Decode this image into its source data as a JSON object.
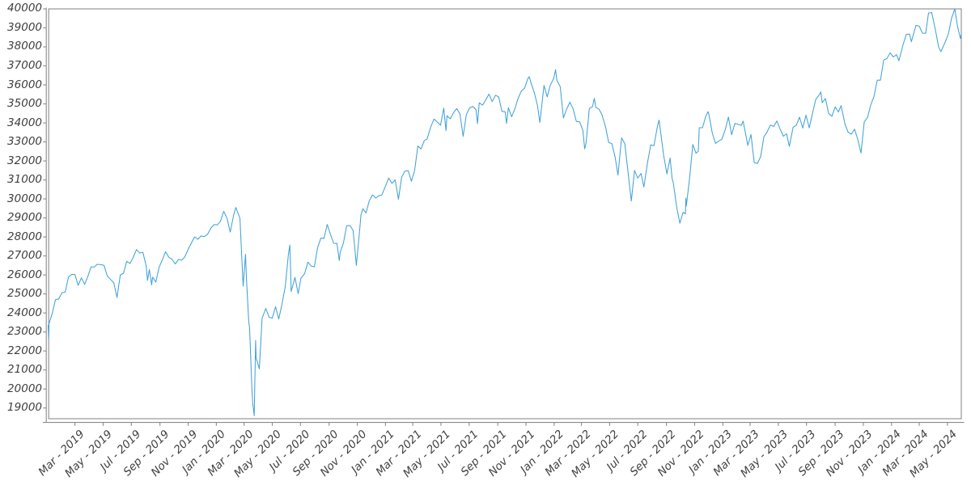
{
  "figure": {
    "background": "#ffffff"
  },
  "chart_data": {
    "type": "line",
    "title": "",
    "xlabel": "",
    "ylabel": "",
    "grid": false,
    "legend": false,
    "line_color": "#41a2d9",
    "axis_color": "#8b8b8b",
    "tick_label_color": "#3f3f3f",
    "x_range": [
      "2019-01-02",
      "2024-05-31"
    ],
    "ylim": [
      18435,
      40020
    ],
    "y_ticks": [
      40000,
      39000,
      38000,
      37000,
      36000,
      35000,
      34000,
      33000,
      32000,
      31000,
      30000,
      29000,
      28000,
      27000,
      26000,
      25000,
      24000,
      23000,
      22000,
      21000,
      20000,
      19000
    ],
    "x_ticks": [
      {
        "label": "Mar - 2019",
        "date": "2019-03-01"
      },
      {
        "label": "May - 2019",
        "date": "2019-05-01"
      },
      {
        "label": "Jul - 2019",
        "date": "2019-07-01"
      },
      {
        "label": "Sep - 2019",
        "date": "2019-09-01"
      },
      {
        "label": "Nov - 2019",
        "date": "2019-11-01"
      },
      {
        "label": "Jan - 2020",
        "date": "2020-01-01"
      },
      {
        "label": "Mar - 2020",
        "date": "2020-03-01"
      },
      {
        "label": "May - 2020",
        "date": "2020-05-01"
      },
      {
        "label": "Jul - 2020",
        "date": "2020-07-01"
      },
      {
        "label": "Sep - 2020",
        "date": "2020-09-01"
      },
      {
        "label": "Nov - 2020",
        "date": "2020-11-01"
      },
      {
        "label": "Jan - 2021",
        "date": "2021-01-01"
      },
      {
        "label": "Mar - 2021",
        "date": "2021-03-01"
      },
      {
        "label": "May - 2021",
        "date": "2021-05-01"
      },
      {
        "label": "Jul - 2021",
        "date": "2021-07-01"
      },
      {
        "label": "Sep - 2021",
        "date": "2021-09-01"
      },
      {
        "label": "Nov - 2021",
        "date": "2021-11-01"
      },
      {
        "label": "Jan - 2022",
        "date": "2022-01-01"
      },
      {
        "label": "Mar - 2022",
        "date": "2022-03-01"
      },
      {
        "label": "May - 2022",
        "date": "2022-05-01"
      },
      {
        "label": "Jul - 2022",
        "date": "2022-07-01"
      },
      {
        "label": "Sep - 2022",
        "date": "2022-09-01"
      },
      {
        "label": "Nov - 2022",
        "date": "2022-11-01"
      },
      {
        "label": "Jan - 2023",
        "date": "2023-01-01"
      },
      {
        "label": "Mar - 2023",
        "date": "2023-03-01"
      },
      {
        "label": "May - 2023",
        "date": "2023-05-01"
      },
      {
        "label": "Jul - 2023",
        "date": "2023-07-01"
      },
      {
        "label": "Sep - 2023",
        "date": "2023-09-01"
      },
      {
        "label": "Nov - 2023",
        "date": "2023-11-01"
      },
      {
        "label": "Jan - 2024",
        "date": "2024-01-01"
      },
      {
        "label": "Mar - 2024",
        "date": "2024-03-01"
      },
      {
        "label": "May - 2024",
        "date": "2024-05-01"
      }
    ],
    "points": [
      [
        "2019-01-02",
        23346
      ],
      [
        "2019-01-03",
        22686
      ],
      [
        "2019-01-04",
        23433
      ],
      [
        "2019-01-11",
        23996
      ],
      [
        "2019-01-18",
        24706
      ],
      [
        "2019-01-25",
        24737
      ],
      [
        "2019-02-01",
        25064
      ],
      [
        "2019-02-08",
        25106
      ],
      [
        "2019-02-15",
        25883
      ],
      [
        "2019-02-22",
        26032
      ],
      [
        "2019-03-01",
        26026
      ],
      [
        "2019-03-08",
        25450
      ],
      [
        "2019-03-15",
        25849
      ],
      [
        "2019-03-22",
        25502
      ],
      [
        "2019-03-29",
        25929
      ],
      [
        "2019-04-05",
        26425
      ],
      [
        "2019-04-12",
        26412
      ],
      [
        "2019-04-18",
        26560
      ],
      [
        "2019-04-26",
        26543
      ],
      [
        "2019-05-03",
        26505
      ],
      [
        "2019-05-10",
        25942
      ],
      [
        "2019-05-17",
        25764
      ],
      [
        "2019-05-24",
        25586
      ],
      [
        "2019-05-31",
        24815
      ],
      [
        "2019-06-07",
        25984
      ],
      [
        "2019-06-14",
        26090
      ],
      [
        "2019-06-21",
        26719
      ],
      [
        "2019-06-28",
        26600
      ],
      [
        "2019-07-05",
        26922
      ],
      [
        "2019-07-12",
        27332
      ],
      [
        "2019-07-19",
        27154
      ],
      [
        "2019-07-26",
        27192
      ],
      [
        "2019-08-02",
        26485
      ],
      [
        "2019-08-05",
        25718
      ],
      [
        "2019-08-09",
        26287
      ],
      [
        "2019-08-14",
        25479
      ],
      [
        "2019-08-16",
        25886
      ],
      [
        "2019-08-23",
        25629
      ],
      [
        "2019-08-30",
        26403
      ],
      [
        "2019-09-06",
        26797
      ],
      [
        "2019-09-13",
        27220
      ],
      [
        "2019-09-20",
        26935
      ],
      [
        "2019-09-27",
        26820
      ],
      [
        "2019-10-04",
        26574
      ],
      [
        "2019-10-11",
        26817
      ],
      [
        "2019-10-18",
        26770
      ],
      [
        "2019-10-25",
        26958
      ],
      [
        "2019-11-01",
        27347
      ],
      [
        "2019-11-08",
        27681
      ],
      [
        "2019-11-15",
        28005
      ],
      [
        "2019-11-22",
        27876
      ],
      [
        "2019-11-29",
        28051
      ],
      [
        "2019-12-06",
        28015
      ],
      [
        "2019-12-13",
        28135
      ],
      [
        "2019-12-20",
        28455
      ],
      [
        "2019-12-27",
        28645
      ],
      [
        "2020-01-03",
        28635
      ],
      [
        "2020-01-10",
        28824
      ],
      [
        "2020-01-17",
        29348
      ],
      [
        "2020-01-24",
        28990
      ],
      [
        "2020-01-31",
        28256
      ],
      [
        "2020-02-07",
        29103
      ],
      [
        "2020-02-12",
        29551
      ],
      [
        "2020-02-21",
        28992
      ],
      [
        "2020-02-28",
        25409
      ],
      [
        "2020-03-04",
        27091
      ],
      [
        "2020-03-06",
        25865
      ],
      [
        "2020-03-11",
        23553
      ],
      [
        "2020-03-13",
        23186
      ],
      [
        "2020-03-18",
        19899
      ],
      [
        "2020-03-20",
        19174
      ],
      [
        "2020-03-23",
        18592
      ],
      [
        "2020-03-26",
        22552
      ],
      [
        "2020-03-27",
        21637
      ],
      [
        "2020-04-03",
        21053
      ],
      [
        "2020-04-09",
        23719
      ],
      [
        "2020-04-17",
        24242
      ],
      [
        "2020-04-24",
        23775
      ],
      [
        "2020-05-01",
        23724
      ],
      [
        "2020-05-08",
        24331
      ],
      [
        "2020-05-15",
        23685
      ],
      [
        "2020-05-22",
        24465
      ],
      [
        "2020-05-29",
        25383
      ],
      [
        "2020-06-05",
        27111
      ],
      [
        "2020-06-08",
        27572
      ],
      [
        "2020-06-11",
        25128
      ],
      [
        "2020-06-19",
        25871
      ],
      [
        "2020-06-26",
        25016
      ],
      [
        "2020-07-02",
        25827
      ],
      [
        "2020-07-10",
        26075
      ],
      [
        "2020-07-17",
        26672
      ],
      [
        "2020-07-24",
        26470
      ],
      [
        "2020-07-31",
        26428
      ],
      [
        "2020-08-07",
        27433
      ],
      [
        "2020-08-14",
        27931
      ],
      [
        "2020-08-21",
        27930
      ],
      [
        "2020-08-28",
        28654
      ],
      [
        "2020-09-04",
        28133
      ],
      [
        "2020-09-11",
        27666
      ],
      [
        "2020-09-18",
        27657
      ],
      [
        "2020-09-23",
        26763
      ],
      [
        "2020-09-25",
        27174
      ],
      [
        "2020-10-02",
        27683
      ],
      [
        "2020-10-09",
        28587
      ],
      [
        "2020-10-16",
        28606
      ],
      [
        "2020-10-23",
        28336
      ],
      [
        "2020-10-30",
        26502
      ],
      [
        "2020-11-06",
        28323
      ],
      [
        "2020-11-09",
        29158
      ],
      [
        "2020-11-13",
        29480
      ],
      [
        "2020-11-20",
        29263
      ],
      [
        "2020-11-27",
        29910
      ],
      [
        "2020-12-04",
        30218
      ],
      [
        "2020-12-11",
        30046
      ],
      [
        "2020-12-18",
        30179
      ],
      [
        "2020-12-24",
        30200
      ],
      [
        "2020-12-31",
        30606
      ],
      [
        "2021-01-08",
        31098
      ],
      [
        "2021-01-15",
        30814
      ],
      [
        "2021-01-22",
        30997
      ],
      [
        "2021-01-29",
        29983
      ],
      [
        "2021-02-05",
        31148
      ],
      [
        "2021-02-12",
        31458
      ],
      [
        "2021-02-19",
        31494
      ],
      [
        "2021-02-26",
        30932
      ],
      [
        "2021-03-05",
        31496
      ],
      [
        "2021-03-12",
        32779
      ],
      [
        "2021-03-19",
        32628
      ],
      [
        "2021-03-26",
        33073
      ],
      [
        "2021-04-01",
        33153
      ],
      [
        "2021-04-09",
        33801
      ],
      [
        "2021-04-16",
        34201
      ],
      [
        "2021-04-23",
        34043
      ],
      [
        "2021-04-30",
        33875
      ],
      [
        "2021-05-07",
        34778
      ],
      [
        "2021-05-12",
        33588
      ],
      [
        "2021-05-14",
        34382
      ],
      [
        "2021-05-21",
        34208
      ],
      [
        "2021-05-28",
        34529
      ],
      [
        "2021-06-04",
        34756
      ],
      [
        "2021-06-11",
        34480
      ],
      [
        "2021-06-18",
        33290
      ],
      [
        "2021-06-25",
        34434
      ],
      [
        "2021-07-02",
        34786
      ],
      [
        "2021-07-09",
        34870
      ],
      [
        "2021-07-16",
        34688
      ],
      [
        "2021-07-19",
        33962
      ],
      [
        "2021-07-23",
        35062
      ],
      [
        "2021-07-30",
        34935
      ],
      [
        "2021-08-06",
        35209
      ],
      [
        "2021-08-13",
        35515
      ],
      [
        "2021-08-20",
        35120
      ],
      [
        "2021-08-27",
        35456
      ],
      [
        "2021-09-03",
        35369
      ],
      [
        "2021-09-10",
        34608
      ],
      [
        "2021-09-17",
        34585
      ],
      [
        "2021-09-20",
        33970
      ],
      [
        "2021-09-24",
        34798
      ],
      [
        "2021-10-01",
        34326
      ],
      [
        "2021-10-08",
        34746
      ],
      [
        "2021-10-15",
        35295
      ],
      [
        "2021-10-22",
        35677
      ],
      [
        "2021-10-29",
        35820
      ],
      [
        "2021-11-05",
        36328
      ],
      [
        "2021-11-08",
        36432
      ],
      [
        "2021-11-12",
        36100
      ],
      [
        "2021-11-19",
        35602
      ],
      [
        "2021-11-26",
        34899
      ],
      [
        "2021-12-01",
        34022
      ],
      [
        "2021-12-10",
        35971
      ],
      [
        "2021-12-17",
        35365
      ],
      [
        "2021-12-23",
        35950
      ],
      [
        "2021-12-31",
        36338
      ],
      [
        "2022-01-04",
        36800
      ],
      [
        "2022-01-07",
        36232
      ],
      [
        "2022-01-14",
        35912
      ],
      [
        "2022-01-21",
        34265
      ],
      [
        "2022-01-28",
        34725
      ],
      [
        "2022-02-04",
        35090
      ],
      [
        "2022-02-11",
        34738
      ],
      [
        "2022-02-18",
        34079
      ],
      [
        "2022-02-25",
        34059
      ],
      [
        "2022-03-04",
        33615
      ],
      [
        "2022-03-08",
        32632
      ],
      [
        "2022-03-11",
        32944
      ],
      [
        "2022-03-18",
        34755
      ],
      [
        "2022-03-25",
        34861
      ],
      [
        "2022-03-29",
        35294
      ],
      [
        "2022-04-01",
        34818
      ],
      [
        "2022-04-08",
        34721
      ],
      [
        "2022-04-14",
        34451
      ],
      [
        "2022-04-22",
        33811
      ],
      [
        "2022-04-29",
        32977
      ],
      [
        "2022-05-06",
        32899
      ],
      [
        "2022-05-13",
        32197
      ],
      [
        "2022-05-19",
        31253
      ],
      [
        "2022-05-27",
        33213
      ],
      [
        "2022-06-03",
        32900
      ],
      [
        "2022-06-10",
        31393
      ],
      [
        "2022-06-17",
        29889
      ],
      [
        "2022-06-24",
        31500
      ],
      [
        "2022-07-01",
        31097
      ],
      [
        "2022-07-08",
        31338
      ],
      [
        "2022-07-14",
        30630
      ],
      [
        "2022-07-22",
        31899
      ],
      [
        "2022-07-29",
        32845
      ],
      [
        "2022-08-05",
        32803
      ],
      [
        "2022-08-12",
        33761
      ],
      [
        "2022-08-16",
        34152
      ],
      [
        "2022-08-26",
        32283
      ],
      [
        "2022-09-02",
        31318
      ],
      [
        "2022-09-09",
        32152
      ],
      [
        "2022-09-13",
        31105
      ],
      [
        "2022-09-16",
        30822
      ],
      [
        "2022-09-23",
        29590
      ],
      [
        "2022-09-30",
        28725
      ],
      [
        "2022-10-07",
        29297
      ],
      [
        "2022-10-12",
        29211
      ],
      [
        "2022-10-13",
        30039
      ],
      [
        "2022-10-14",
        29635
      ],
      [
        "2022-10-21",
        31083
      ],
      [
        "2022-10-28",
        32862
      ],
      [
        "2022-11-04",
        32403
      ],
      [
        "2022-11-09",
        32514
      ],
      [
        "2022-11-11",
        33748
      ],
      [
        "2022-11-18",
        33746
      ],
      [
        "2022-11-25",
        34347
      ],
      [
        "2022-11-30",
        34590
      ],
      [
        "2022-12-02",
        34430
      ],
      [
        "2022-12-09",
        33476
      ],
      [
        "2022-12-16",
        32920
      ],
      [
        "2022-12-22",
        33027
      ],
      [
        "2022-12-30",
        33147
      ],
      [
        "2023-01-06",
        33631
      ],
      [
        "2023-01-13",
        34303
      ],
      [
        "2023-01-20",
        33375
      ],
      [
        "2023-01-27",
        33978
      ],
      [
        "2023-02-03",
        33926
      ],
      [
        "2023-02-10",
        33869
      ],
      [
        "2023-02-14",
        34089
      ],
      [
        "2023-02-24",
        32817
      ],
      [
        "2023-03-03",
        33391
      ],
      [
        "2023-03-10",
        31910
      ],
      [
        "2023-03-15",
        31875
      ],
      [
        "2023-03-17",
        31862
      ],
      [
        "2023-03-24",
        32238
      ],
      [
        "2023-03-31",
        33274
      ],
      [
        "2023-04-06",
        33485
      ],
      [
        "2023-04-14",
        33886
      ],
      [
        "2023-04-21",
        33809
      ],
      [
        "2023-04-28",
        34098
      ],
      [
        "2023-05-05",
        33674
      ],
      [
        "2023-05-12",
        33301
      ],
      [
        "2023-05-19",
        33427
      ],
      [
        "2023-05-25",
        32764
      ],
      [
        "2023-06-02",
        33763
      ],
      [
        "2023-06-09",
        33877
      ],
      [
        "2023-06-16",
        34299
      ],
      [
        "2023-06-23",
        33727
      ],
      [
        "2023-06-30",
        34408
      ],
      [
        "2023-07-07",
        33735
      ],
      [
        "2023-07-14",
        34509
      ],
      [
        "2023-07-21",
        35228
      ],
      [
        "2023-07-28",
        35459
      ],
      [
        "2023-08-01",
        35630
      ],
      [
        "2023-08-04",
        35066
      ],
      [
        "2023-08-11",
        35281
      ],
      [
        "2023-08-18",
        34501
      ],
      [
        "2023-08-25",
        34347
      ],
      [
        "2023-09-01",
        34838
      ],
      [
        "2023-09-08",
        34577
      ],
      [
        "2023-09-14",
        34907
      ],
      [
        "2023-09-22",
        33964
      ],
      [
        "2023-09-29",
        33508
      ],
      [
        "2023-10-06",
        33408
      ],
      [
        "2023-10-13",
        33670
      ],
      [
        "2023-10-20",
        33127
      ],
      [
        "2023-10-27",
        32418
      ],
      [
        "2023-11-03",
        34061
      ],
      [
        "2023-11-10",
        34283
      ],
      [
        "2023-11-17",
        34947
      ],
      [
        "2023-11-24",
        35390
      ],
      [
        "2023-12-01",
        36246
      ],
      [
        "2023-12-08",
        36248
      ],
      [
        "2023-12-15",
        37305
      ],
      [
        "2023-12-22",
        37386
      ],
      [
        "2023-12-29",
        37690
      ],
      [
        "2024-01-05",
        37466
      ],
      [
        "2024-01-12",
        37593
      ],
      [
        "2024-01-17",
        37267
      ],
      [
        "2024-01-26",
        38109
      ],
      [
        "2024-02-02",
        38654
      ],
      [
        "2024-02-09",
        38672
      ],
      [
        "2024-02-13",
        38273
      ],
      [
        "2024-02-23",
        39132
      ],
      [
        "2024-03-01",
        39087
      ],
      [
        "2024-03-08",
        38723
      ],
      [
        "2024-03-15",
        38715
      ],
      [
        "2024-03-21",
        39781
      ],
      [
        "2024-03-28",
        39807
      ],
      [
        "2024-04-05",
        38904
      ],
      [
        "2024-04-12",
        37983
      ],
      [
        "2024-04-17",
        37753
      ],
      [
        "2024-04-26",
        38240
      ],
      [
        "2024-05-03",
        38676
      ],
      [
        "2024-05-10",
        39513
      ],
      [
        "2024-05-17",
        40004
      ],
      [
        "2024-05-23",
        39065
      ],
      [
        "2024-05-29",
        38442
      ],
      [
        "2024-05-31",
        38686
      ]
    ]
  }
}
